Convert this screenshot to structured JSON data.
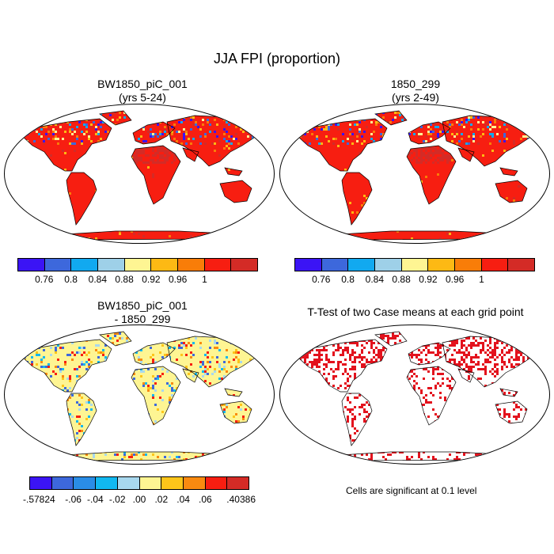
{
  "title": "JJA FPI (proportion)",
  "panels": {
    "p1": {
      "title_line1": "BW1850_piC_001",
      "title_line2": "(yrs 5-24)"
    },
    "p2": {
      "title_line1": "1850_299",
      "title_line2": "(yrs 2-49)"
    },
    "p3": {
      "title_line1": "BW1850_piC_001",
      "title_line2": "- 1850_299"
    },
    "p4": {
      "title_line1": "T-Test of two Case means at each grid point",
      "note": "Cells are significant at 0.1 level"
    }
  },
  "colorbar_fpi": {
    "colors": [
      "#3b14f5",
      "#3d68dc",
      "#11a9f0",
      "#9ed0e8",
      "#fef593",
      "#fdb914",
      "#f97d08",
      "#f71e11",
      "#d42b26"
    ],
    "labels": [
      "0.76",
      "0.8",
      "0.84",
      "0.88",
      "0.92",
      "0.96",
      "1"
    ]
  },
  "colorbar_diff": {
    "colors": [
      "#3b14f5",
      "#3d68dc",
      "#2a8de6",
      "#11b8f0",
      "#a8d8ee",
      "#fef593",
      "#fdc51a",
      "#f98a10",
      "#f71e11",
      "#d42b26"
    ],
    "labels": [
      "-.57824",
      "-.06",
      "-.04",
      "-.02",
      ".00",
      ".02",
      ".04",
      ".06",
      ".40386"
    ]
  },
  "chart_data": [
    {
      "type": "heatmap",
      "title": "BW1850_piC_001 (yrs 5-24)",
      "variable": "JJA FPI",
      "colorbar_ticks": [
        0.76,
        0.8,
        0.84,
        0.88,
        0.92,
        0.96,
        1
      ]
    },
    {
      "type": "heatmap",
      "title": "1850_299 (yrs 2-49)",
      "variable": "JJA FPI",
      "colorbar_ticks": [
        0.76,
        0.8,
        0.84,
        0.88,
        0.92,
        0.96,
        1
      ]
    },
    {
      "type": "heatmap",
      "title": "BW1850_piC_001 - 1850_299",
      "variable": "JJA FPI difference",
      "colorbar_ticks": [
        -0.57824,
        -0.06,
        -0.04,
        -0.02,
        0.0,
        0.02,
        0.04,
        0.06,
        0.40386
      ]
    },
    {
      "type": "heatmap",
      "title": "T-Test of two Case means at each grid point",
      "significance_level": 0.1
    }
  ]
}
